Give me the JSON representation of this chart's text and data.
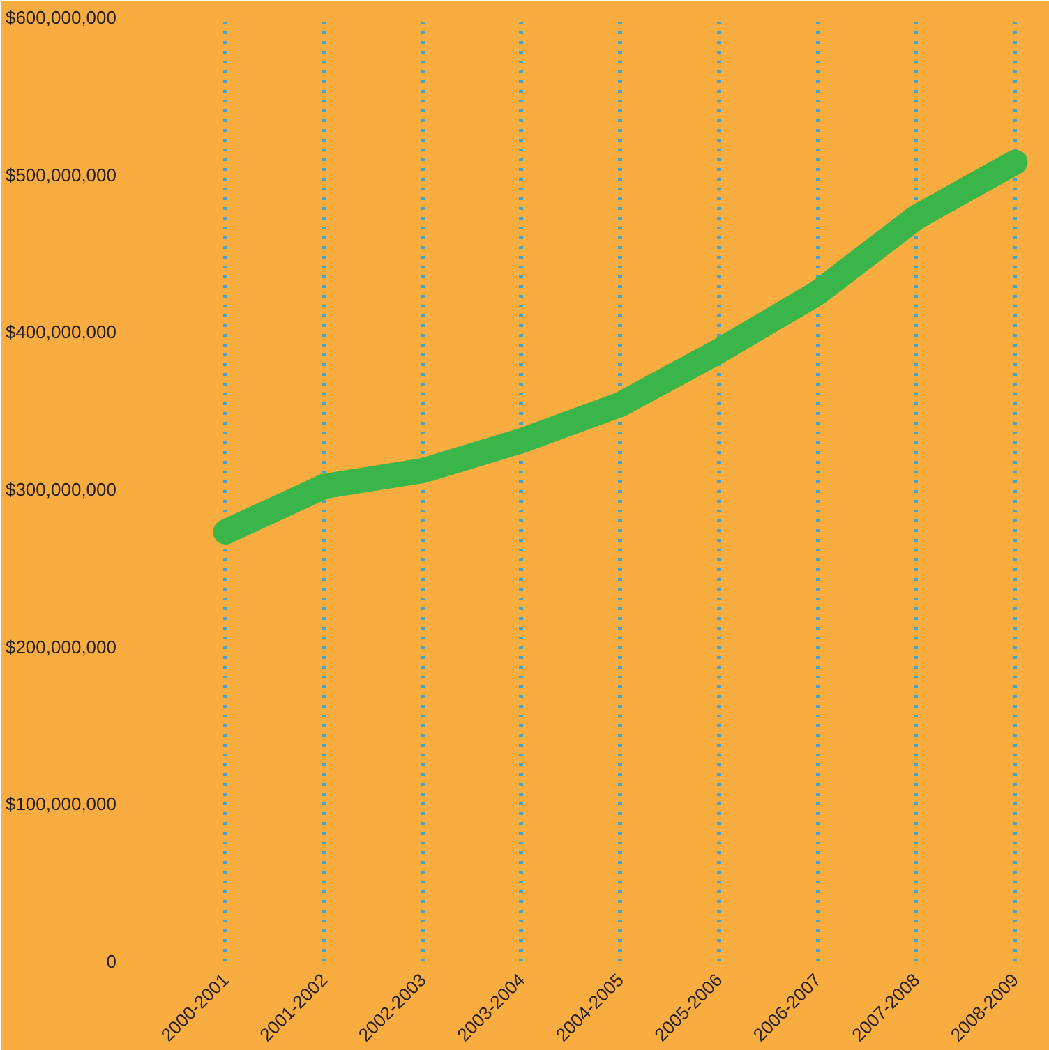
{
  "chart_data": {
    "type": "line",
    "categories": [
      "2000-2001",
      "2001-2002",
      "2002-2003",
      "2003-2004",
      "2004-2005",
      "2005-2006",
      "2006-2007",
      "2007-2008",
      "2008-2009"
    ],
    "series": [
      {
        "color": "#39b54a",
        "values": [
          273000000,
          302000000,
          312000000,
          331000000,
          354000000,
          388000000,
          425000000,
          473000000,
          508000000
        ]
      }
    ],
    "ylim": [
      0,
      600000000
    ],
    "yticks": [
      0,
      {
        "value": 100000000,
        "label": "$100,000,000"
      },
      {
        "value": 200000000,
        "label": "$200,000,000"
      },
      {
        "value": 300000000,
        "label": "$300,000,000"
      },
      {
        "value": 400000000,
        "label": "$400,000,000"
      },
      {
        "value": 500000000,
        "label": "$500,000,000"
      },
      {
        "value": 600000000,
        "label": "$600,000,000"
      }
    ],
    "grid": "x"
  }
}
